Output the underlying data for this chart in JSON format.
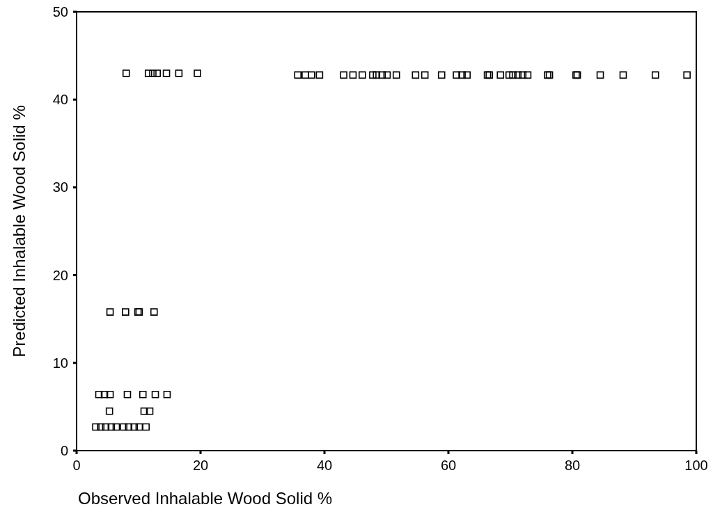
{
  "chart_data": {
    "type": "scatter",
    "xlabel": "Observed Inhalable Wood Solid %",
    "ylabel": "Predicted Inhalable Wood Solid %",
    "xlim": [
      0,
      100
    ],
    "ylim": [
      0,
      50
    ],
    "xticks": [
      0,
      20,
      40,
      60,
      80,
      100
    ],
    "yticks": [
      0,
      10,
      20,
      30,
      40,
      50
    ],
    "grid": false,
    "marker": "square",
    "series": [
      {
        "color": "#000000",
        "x": [
          8.0,
          11.6,
          12.3,
          13.0,
          14.5,
          16.5,
          19.5,
          35.7,
          36.9,
          37.9,
          39.2,
          43.1,
          44.6,
          46.1,
          47.8,
          48.4,
          49.3,
          50.1,
          51.6,
          54.7,
          56.2,
          58.9,
          61.3,
          62.2,
          63.0,
          66.3,
          66.6,
          68.4,
          69.8,
          70.4,
          71.2,
          72.0,
          72.8,
          76.0,
          76.3,
          80.6,
          80.8,
          84.5,
          88.2,
          93.4,
          98.5,
          5.4,
          7.9,
          9.9,
          10.1,
          12.5,
          3.6,
          4.5,
          5.4,
          8.2,
          10.7,
          12.7,
          14.6,
          5.3,
          10.9,
          11.8,
          3.1,
          3.9,
          4.7,
          5.6,
          6.4,
          7.6,
          8.4,
          9.3,
          10.1,
          11.2
        ],
        "values": [
          43.0,
          43.0,
          43.0,
          43.0,
          43.0,
          43.0,
          43.0,
          42.8,
          42.8,
          42.8,
          42.8,
          42.8,
          42.8,
          42.8,
          42.8,
          42.8,
          42.8,
          42.8,
          42.8,
          42.8,
          42.8,
          42.8,
          42.8,
          42.8,
          42.8,
          42.8,
          42.8,
          42.8,
          42.8,
          42.8,
          42.8,
          42.8,
          42.8,
          42.8,
          42.8,
          42.8,
          42.8,
          42.8,
          42.8,
          42.8,
          42.8,
          15.8,
          15.8,
          15.8,
          15.8,
          15.8,
          6.4,
          6.4,
          6.4,
          6.4,
          6.4,
          6.4,
          6.4,
          4.5,
          4.5,
          4.5,
          2.7,
          2.7,
          2.7,
          2.7,
          2.7,
          2.7,
          2.7,
          2.7,
          2.7,
          2.7
        ]
      }
    ]
  }
}
